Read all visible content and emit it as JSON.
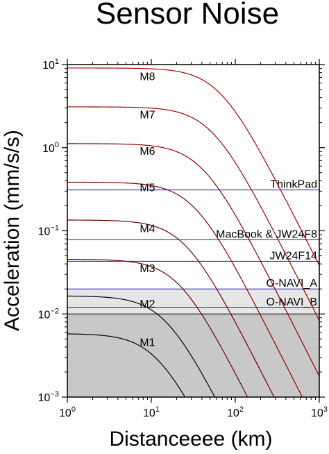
{
  "chart_data": {
    "type": "line",
    "title": "Sensor Noise",
    "xlabel": "Distanceeee (km)",
    "ylabel": "Acceleration (mm/s/s)",
    "x_scale": "log",
    "y_scale": "log",
    "xlim": [
      1,
      1000
    ],
    "ylim": [
      0.001,
      10
    ],
    "x_ticks": [
      {
        "base": "10",
        "exp": "0",
        "value": 1
      },
      {
        "base": "10",
        "exp": "1",
        "value": 10
      },
      {
        "base": "10",
        "exp": "2",
        "value": 100
      },
      {
        "base": "10",
        "exp": "3",
        "value": 1000
      }
    ],
    "y_ticks": [
      {
        "base": "10",
        "exp": "−3",
        "value": 0.001
      },
      {
        "base": "10",
        "exp": "−2",
        "value": 0.01
      },
      {
        "base": "10",
        "exp": "−1",
        "value": 0.1
      },
      {
        "base": "10",
        "exp": "0",
        "value": 1
      },
      {
        "base": "10",
        "exp": "1",
        "value": 10
      }
    ],
    "shaded_bands": [
      {
        "from": 0.001,
        "to": 0.01,
        "color": "#c8c8c8"
      },
      {
        "from": 0.01,
        "to": 0.02,
        "color": "#e6e6e6"
      }
    ],
    "series": [
      {
        "name": "M1",
        "label_x": 9.0,
        "label_y": 0.0041,
        "peak": 0.0058,
        "corner": 11.5,
        "color": "#000000"
      },
      {
        "name": "M2",
        "label_x": 9.0,
        "label_y": 0.012,
        "peak": 0.0165,
        "corner": 14.5,
        "color": "#000000"
      },
      {
        "name": "M3",
        "label_x": 9.0,
        "label_y": 0.032,
        "peak": 0.0455,
        "corner": 21.0,
        "color": "#6b0000"
      },
      {
        "name": "M4",
        "label_x": 9.0,
        "label_y": 0.096,
        "peak": 0.135,
        "corner": 25.0,
        "color": "#6b0000"
      },
      {
        "name": "M5",
        "label_x": 9.0,
        "label_y": 0.3,
        "peak": 0.385,
        "corner": 32.0,
        "color": "#8b0000"
      },
      {
        "name": "M6",
        "label_x": 9.0,
        "label_y": 0.82,
        "peak": 1.12,
        "corner": 40.0,
        "color": "#8b0000"
      },
      {
        "name": "M7",
        "label_x": 9.0,
        "label_y": 2.25,
        "peak": 3.1,
        "corner": 52.0,
        "color": "#a00000"
      },
      {
        "name": "M8",
        "label_x": 9.0,
        "label_y": 6.5,
        "peak": 9.1,
        "corner": 65.0,
        "color": "#b00000"
      }
    ],
    "noise_levels": [
      {
        "name": "ThinkPad",
        "value": 0.31,
        "color": "#1a1aa0"
      },
      {
        "name": "MacBook & JW24F8",
        "value": 0.078,
        "color": "#1a1aa0"
      },
      {
        "name": "JW24F14",
        "value": 0.043,
        "color": "#1a1aa0"
      },
      {
        "name": "O-NAVI_A",
        "value": 0.02,
        "color": "#1a1aa0"
      },
      {
        "name": "O-NAVI_B",
        "value": 0.012,
        "color": "#1a1aa0"
      }
    ],
    "reference_lines": [
      0.01
    ],
    "grid": false,
    "legend": "none"
  }
}
